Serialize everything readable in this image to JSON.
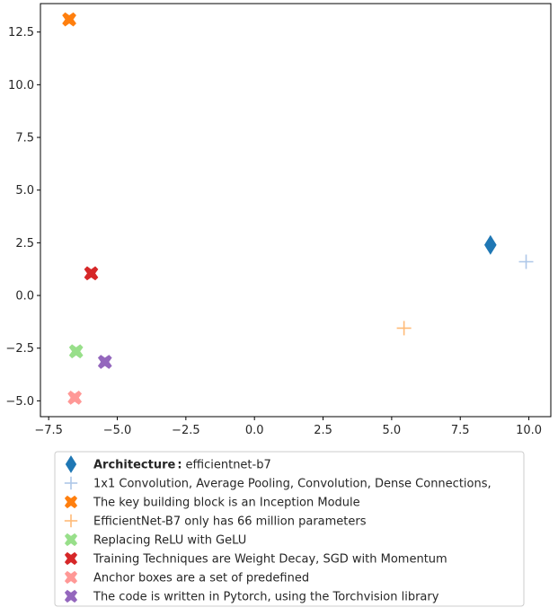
{
  "chart_data": {
    "type": "scatter",
    "title": "",
    "xlabel": "",
    "ylabel": "",
    "xlim": [
      -7.8,
      10.8
    ],
    "ylim": [
      -5.75,
      13.85
    ],
    "xticks": [
      -7.5,
      -5.0,
      -2.5,
      0.0,
      2.5,
      5.0,
      7.5,
      10.0
    ],
    "yticks": [
      -5.0,
      -2.5,
      0.0,
      2.5,
      5.0,
      7.5,
      10.0,
      12.5
    ],
    "xtick_labels": [
      "−7.5",
      "−5.0",
      "−2.5",
      "0.0",
      "2.5",
      "5.0",
      "7.5",
      "10.0"
    ],
    "ytick_labels": [
      "−5.0",
      "−2.5",
      "0.0",
      "2.5",
      "5.0",
      "7.5",
      "10.0",
      "12.5"
    ],
    "grid": false,
    "legend_position": "below",
    "series": [
      {
        "name_bold": "Architecture",
        "name_sep": ":",
        "name": "efficientnet-b7",
        "marker": "thin_diamond",
        "color": "#1f77b4",
        "x": 8.6,
        "y": 2.4
      },
      {
        "name": "1x1 Convolution, Average Pooling, Convolution, Dense Connections,",
        "marker": "plus",
        "color": "#aec7e8",
        "x": 9.9,
        "y": 1.6
      },
      {
        "name": "The key building block is an Inception Module",
        "marker": "x_filled",
        "color": "#ff7f0e",
        "x": -6.75,
        "y": 13.1
      },
      {
        "name": "EfficientNet-B7 only has 66 million parameters",
        "marker": "plus",
        "color": "#ffbb78",
        "x": 5.45,
        "y": -1.55
      },
      {
        "name": "Replacing ReLU with GeLU",
        "marker": "x_filled",
        "color": "#98df8a",
        "x": -6.5,
        "y": -2.65
      },
      {
        "name": "Training Techniques are Weight Decay, SGD with Momentum",
        "marker": "x_filled",
        "color": "#d62728",
        "x": -5.95,
        "y": 1.05
      },
      {
        "name": "Anchor boxes are a set of predefined",
        "marker": "x_filled",
        "color": "#ff9896",
        "x": -6.55,
        "y": -4.85
      },
      {
        "name": "The code is written in Pytorch, using the Torchvision library",
        "marker": "x_filled",
        "color": "#9467bd",
        "x": -5.45,
        "y": -3.15
      }
    ]
  }
}
